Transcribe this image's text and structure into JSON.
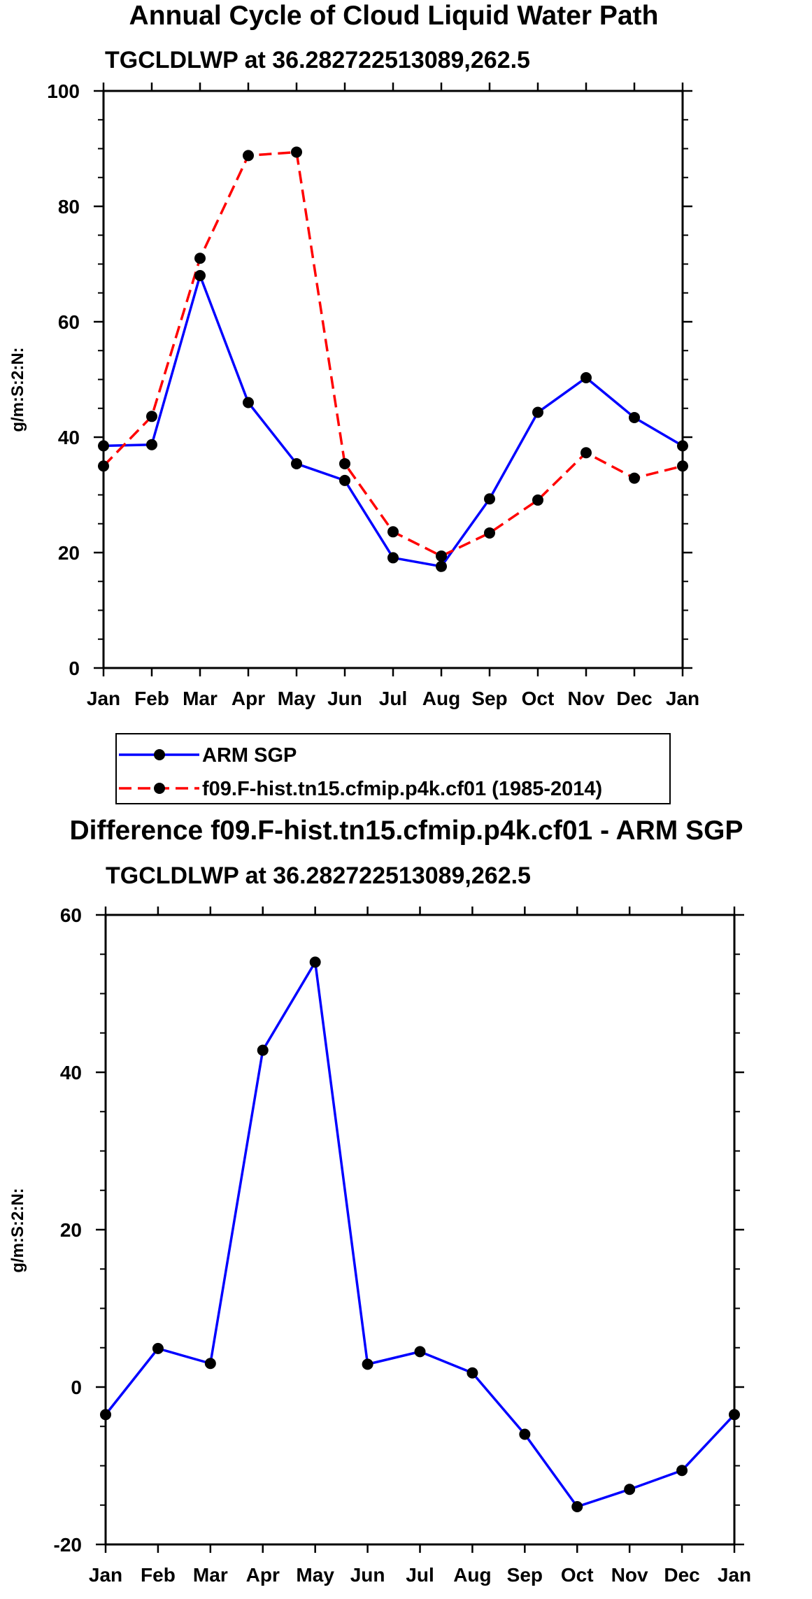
{
  "chart_data": [
    {
      "type": "line",
      "title": "Annual Cycle of Cloud Liquid Water Path",
      "subtitle": "TGCLDLWP at 36.282722513089,262.5",
      "xlabel": "",
      "ylabel": "g/m:S:2:N:",
      "categories": [
        "Jan",
        "Feb",
        "Mar",
        "Apr",
        "May",
        "Jun",
        "Jul",
        "Aug",
        "Sep",
        "Oct",
        "Nov",
        "Dec",
        "Jan"
      ],
      "ylim": [
        0,
        100
      ],
      "yticks": [
        0,
        20,
        40,
        60,
        80,
        100
      ],
      "series": [
        {
          "name": "ARM SGP",
          "color": "#0000ff",
          "dash": "solid",
          "values": [
            38.5,
            38.7,
            68.0,
            46.0,
            35.4,
            32.5,
            19.1,
            17.6,
            29.3,
            44.3,
            50.3,
            43.4,
            38.5
          ]
        },
        {
          "name": "f09.F-hist.tn15.cfmip.p4k.cf01 (1985-2014)",
          "color": "#ff0000",
          "dash": "dashed",
          "values": [
            35.0,
            43.6,
            71.0,
            88.8,
            89.4,
            35.4,
            23.6,
            19.4,
            23.4,
            29.1,
            37.3,
            32.9,
            35.0
          ]
        }
      ],
      "legend": {
        "position": "bottom",
        "entries": [
          "ARM SGP",
          "f09.F-hist.tn15.cfmip.p4k.cf01 (1985-2014)"
        ]
      }
    },
    {
      "type": "line",
      "title": "Difference f09.F-hist.tn15.cfmip.p4k.cf01 - ARM SGP",
      "subtitle": "TGCLDLWP at 36.282722513089,262.5",
      "xlabel": "",
      "ylabel": "g/m:S:2:N:",
      "categories": [
        "Jan",
        "Feb",
        "Mar",
        "Apr",
        "May",
        "Jun",
        "Jul",
        "Aug",
        "Sep",
        "Oct",
        "Nov",
        "Dec",
        "Jan"
      ],
      "ylim": [
        -20,
        60
      ],
      "yticks": [
        -20,
        0,
        20,
        40,
        60
      ],
      "series": [
        {
          "name": "difference",
          "color": "#0000ff",
          "dash": "solid",
          "values": [
            -3.5,
            4.9,
            3.0,
            42.8,
            54.0,
            2.9,
            4.5,
            1.8,
            -6.0,
            -15.2,
            -13.0,
            -10.6,
            -3.5
          ]
        }
      ]
    }
  ]
}
